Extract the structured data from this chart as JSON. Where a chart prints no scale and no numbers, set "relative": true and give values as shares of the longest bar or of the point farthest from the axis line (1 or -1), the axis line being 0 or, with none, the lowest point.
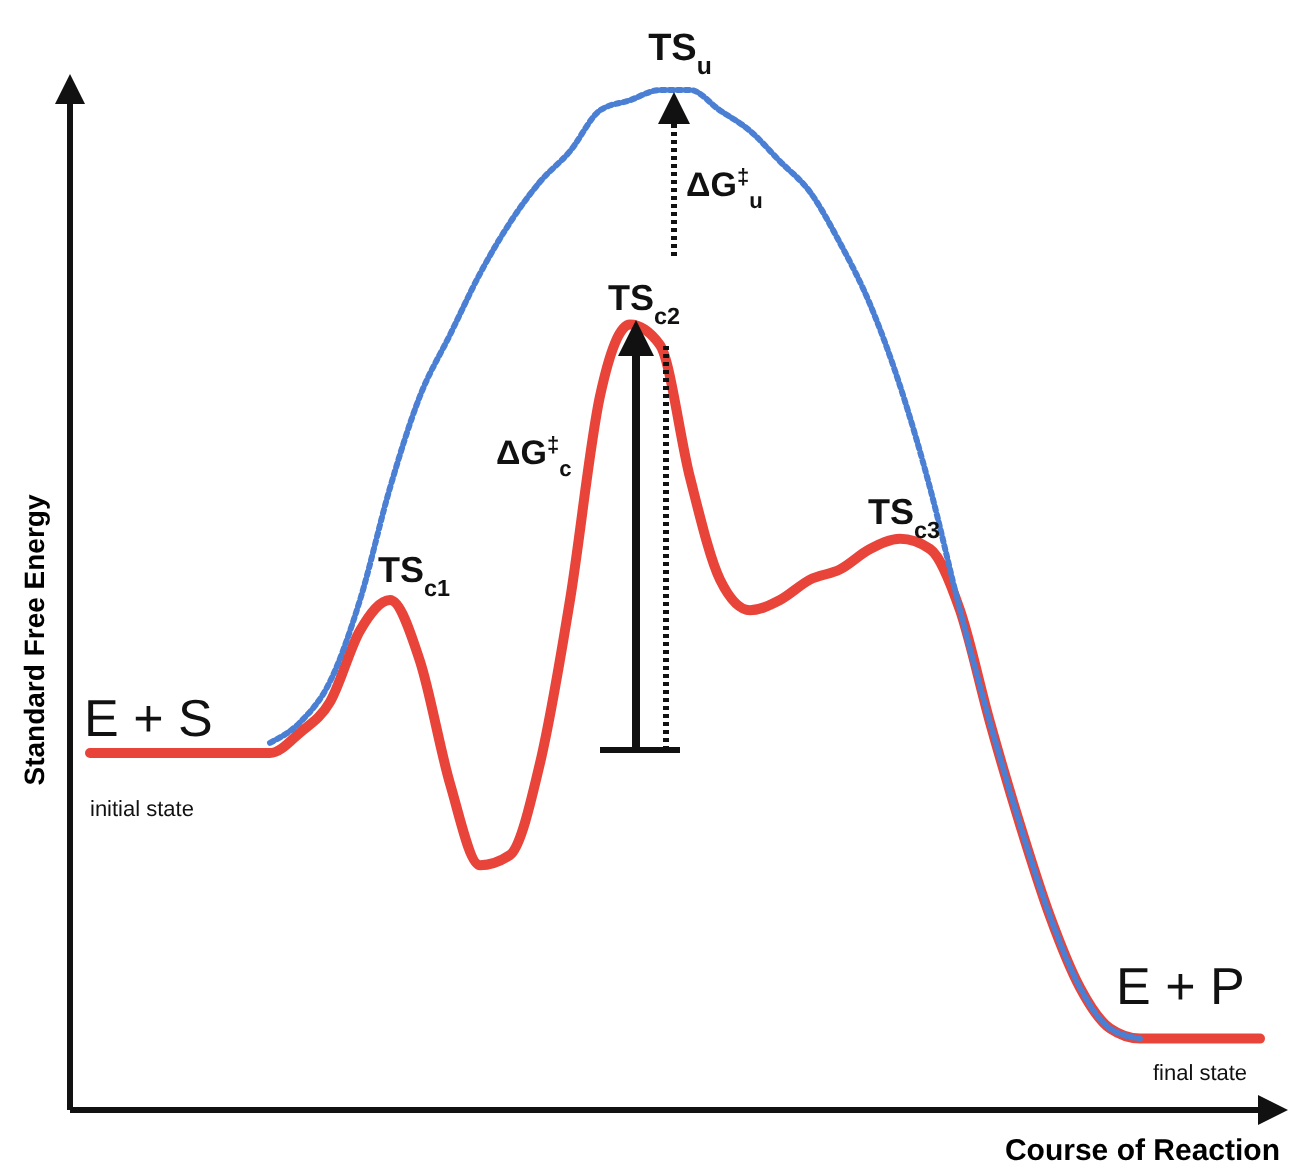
{
  "chart_data": {
    "type": "line",
    "relative": true,
    "xlabel": "Course of Reaction",
    "ylabel": "Standard Free Energy",
    "categories": [
      null,
      null,
      null,
      null,
      null,
      null,
      null,
      null,
      null,
      null,
      null,
      null,
      null,
      null,
      null,
      null,
      null,
      null,
      null,
      null,
      null,
      null,
      null,
      null,
      null,
      null,
      null,
      null,
      null,
      null,
      null,
      null,
      null,
      null,
      null,
      null,
      null,
      null,
      null,
      null
    ],
    "series": [
      {
        "color": "#e8443a",
        "line_style": "solid",
        "values": [
          0.35,
          0.35,
          0.35,
          0.35,
          0.35,
          0.35,
          0.35,
          0.37,
          0.4,
          0.47,
          0.5,
          0.44,
          0.32,
          0.24,
          0.25,
          0.34,
          0.5,
          0.7,
          0.77,
          0.75,
          0.62,
          0.52,
          0.49,
          0.5,
          0.52,
          0.53,
          0.55,
          0.56,
          0.55,
          0.49,
          0.38,
          0.28,
          0.19,
          0.12,
          0.08,
          0.07,
          0.07,
          0.07,
          0.07,
          0.07
        ]
      },
      {
        "color": "#4a7fd4",
        "line_style": "dotted",
        "values": [
          null,
          null,
          null,
          null,
          null,
          null,
          0.36,
          0.38,
          0.42,
          0.5,
          0.61,
          0.7,
          0.76,
          0.82,
          0.87,
          0.91,
          0.94,
          0.98,
          0.99,
          1,
          1,
          0.98,
          0.96,
          0.93,
          0.9,
          0.85,
          0.79,
          0.71,
          0.61,
          0.49,
          0.38,
          0.28,
          0.19,
          0.12,
          0.08,
          0.07,
          null,
          null,
          null,
          null
        ]
      }
    ],
    "annotations": [
      "TS$_{u}$",
      "ΔG$^{‡}$$_{u}$",
      "TS$_{c2}$",
      "ΔG$^{‡}$$_{c}$",
      "TS$_{c1}$",
      "TS$_{c3}$",
      "E + S",
      "initial state",
      "E + P",
      "final state"
    ],
    "grid": false
  }
}
